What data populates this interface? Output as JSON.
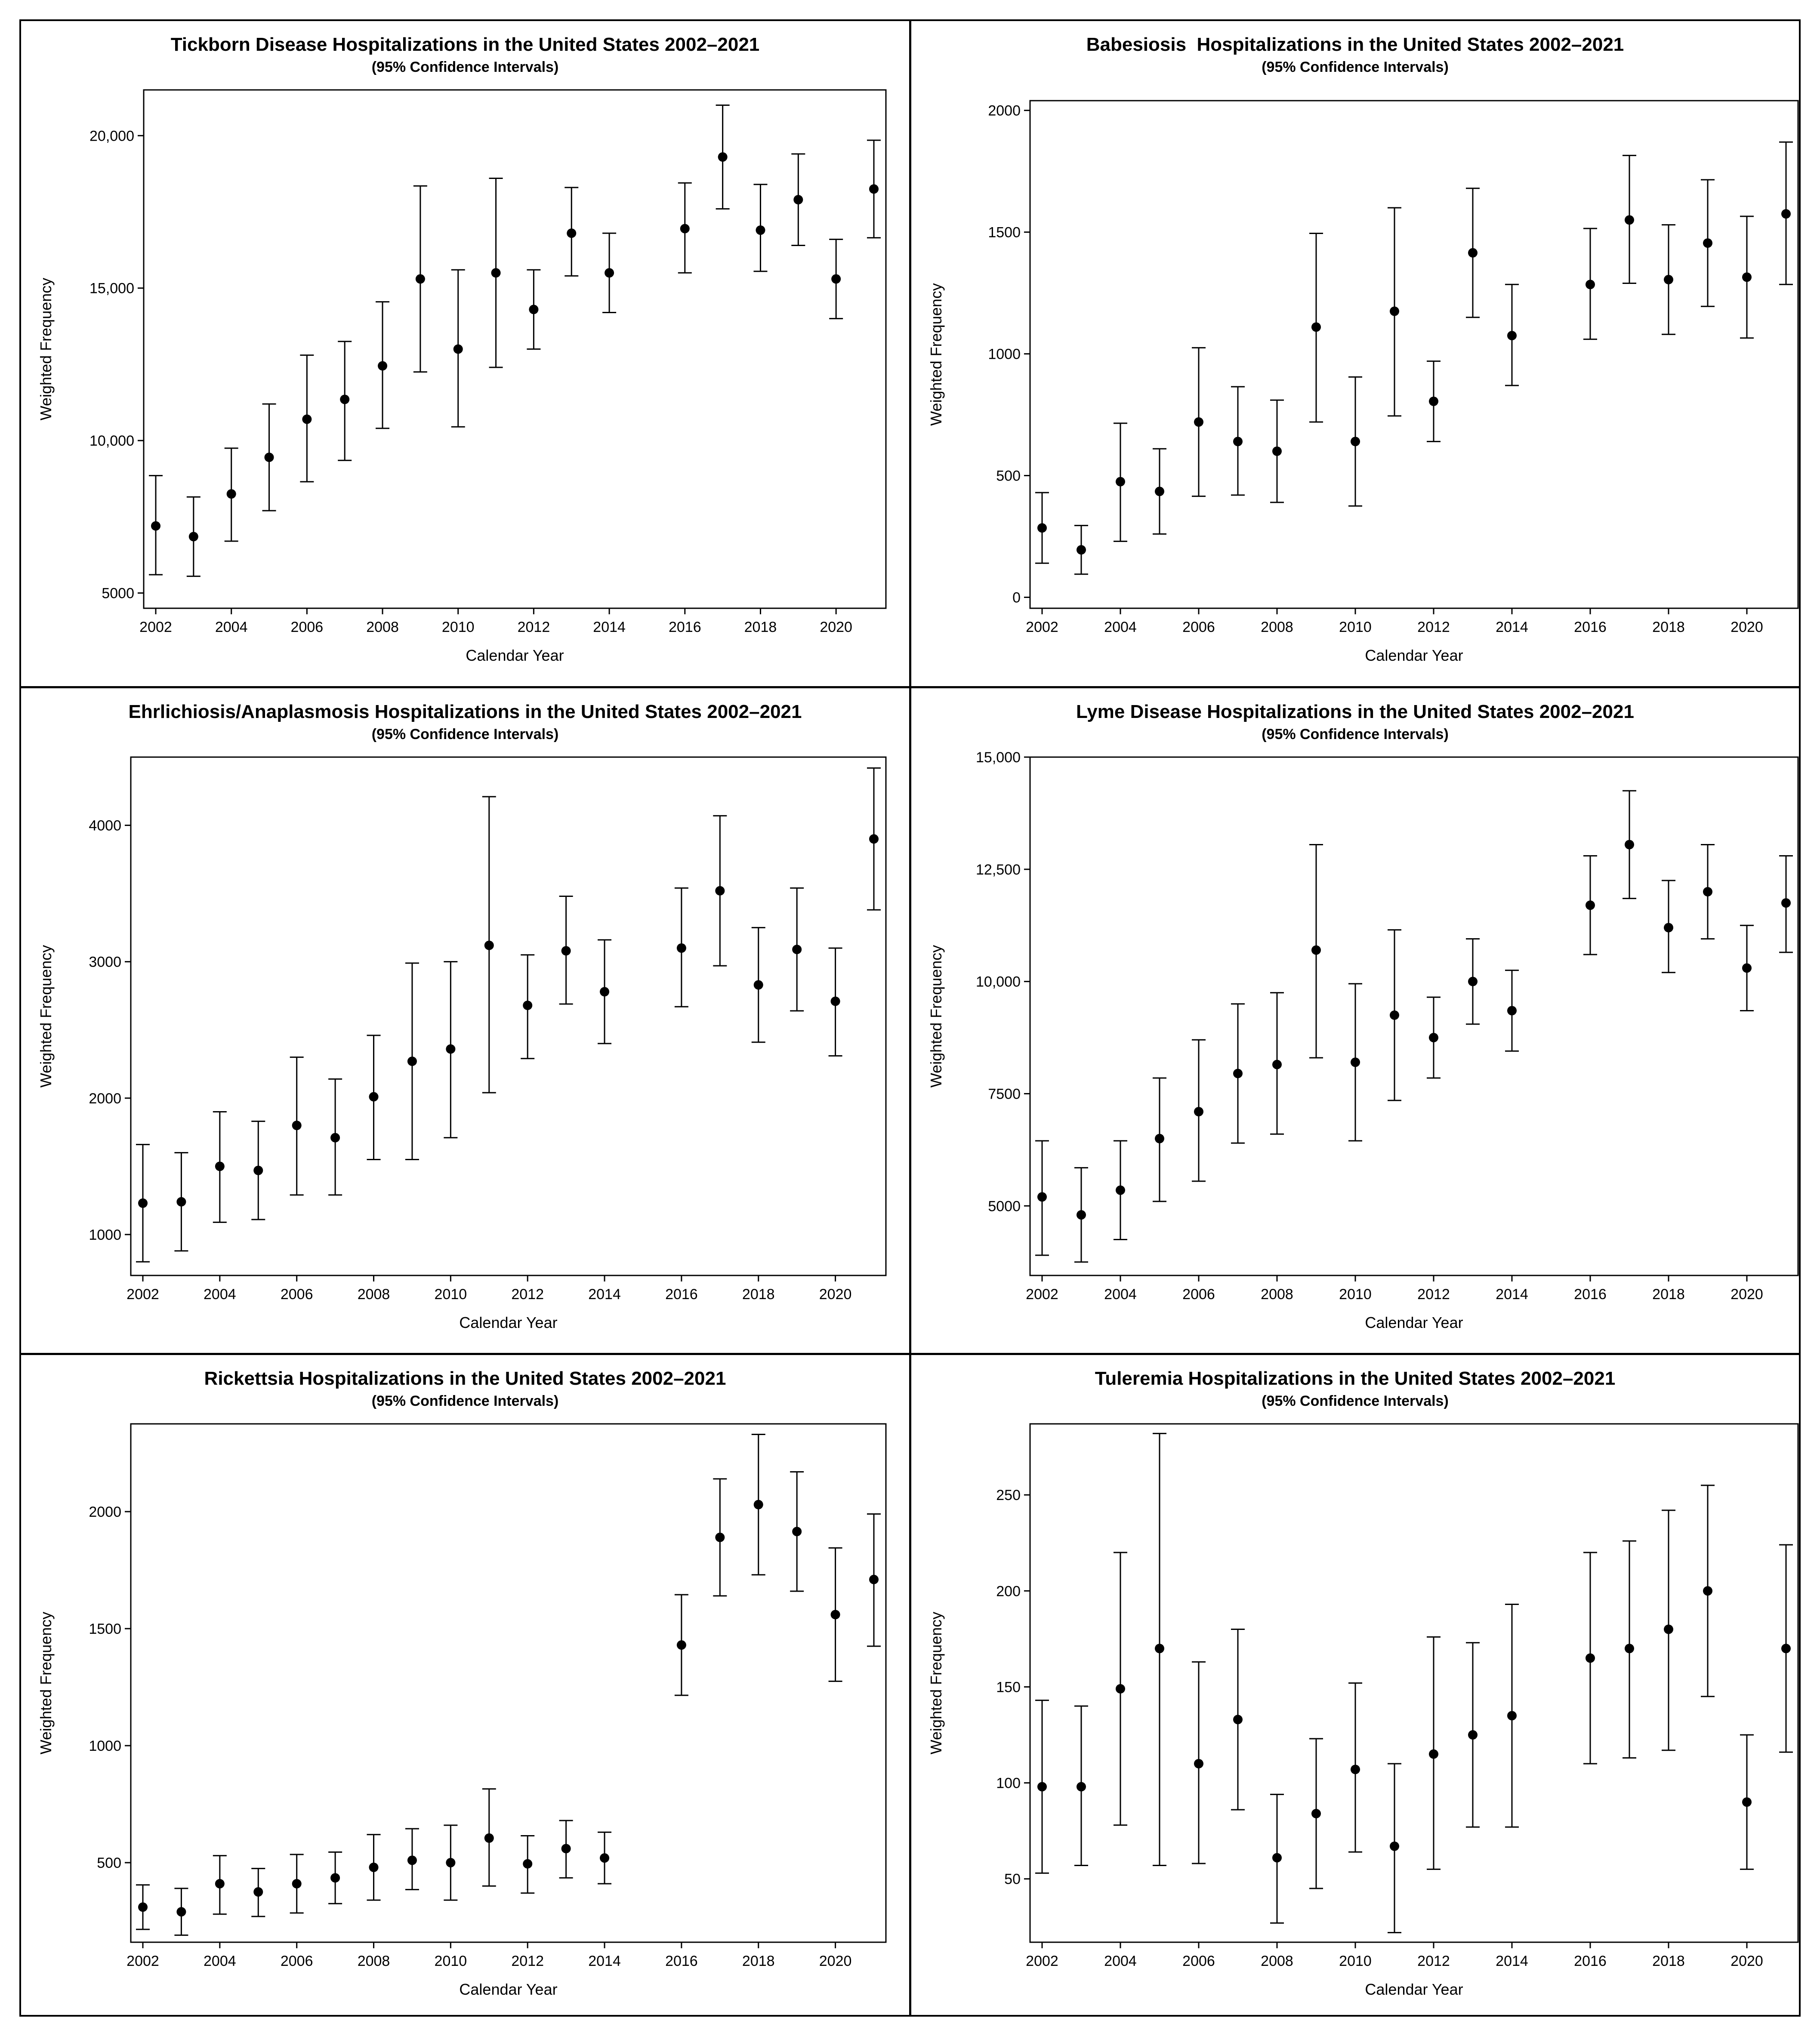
{
  "chart_data": [
    {
      "type": "scatter",
      "title": "Tickborn Disease Hospitalizations in the United States 2002–2021",
      "subtitle": "(95% Confidence Intervals)",
      "xlabel": "Calendar Year",
      "ylabel": "Weighted Frequency",
      "xlim": [
        2002,
        2021
      ],
      "xticks": [
        2002,
        2004,
        2006,
        2008,
        2010,
        2012,
        2014,
        2016,
        2018,
        2020
      ],
      "ylim": [
        4500,
        21500
      ],
      "yticks": [
        5000,
        10000,
        15000,
        20000
      ],
      "ytick_labels": [
        "5000",
        "10,000",
        "15,000",
        "20,000"
      ],
      "points": [
        {
          "x": 2002,
          "y": 7200,
          "lower": 5600,
          "upper": 8850
        },
        {
          "x": 2003,
          "y": 6850,
          "lower": 5550,
          "upper": 8150
        },
        {
          "x": 2004,
          "y": 8250,
          "lower": 6700,
          "upper": 9750
        },
        {
          "x": 2005,
          "y": 9450,
          "lower": 7700,
          "upper": 11200
        },
        {
          "x": 2006,
          "y": 10700,
          "lower": 8650,
          "upper": 12800
        },
        {
          "x": 2007,
          "y": 11350,
          "lower": 9350,
          "upper": 13250
        },
        {
          "x": 2008,
          "y": 12450,
          "lower": 10400,
          "upper": 14550
        },
        {
          "x": 2009,
          "y": 15300,
          "lower": 12250,
          "upper": 18350
        },
        {
          "x": 2010,
          "y": 13000,
          "lower": 10450,
          "upper": 15600
        },
        {
          "x": 2011,
          "y": 15500,
          "lower": 12400,
          "upper": 18600
        },
        {
          "x": 2012,
          "y": 14300,
          "lower": 13000,
          "upper": 15600
        },
        {
          "x": 2013,
          "y": 16800,
          "lower": 15400,
          "upper": 18300
        },
        {
          "x": 2014,
          "y": 15500,
          "lower": 14200,
          "upper": 16800
        },
        {
          "x": 2016,
          "y": 16950,
          "lower": 15500,
          "upper": 18450
        },
        {
          "x": 2017,
          "y": 19300,
          "lower": 17600,
          "upper": 21000
        },
        {
          "x": 2018,
          "y": 16900,
          "lower": 15550,
          "upper": 18400
        },
        {
          "x": 2019,
          "y": 17900,
          "lower": 16400,
          "upper": 19400
        },
        {
          "x": 2020,
          "y": 15300,
          "lower": 14000,
          "upper": 16600
        },
        {
          "x": 2021,
          "y": 18250,
          "lower": 16650,
          "upper": 19850
        }
      ]
    },
    {
      "type": "scatter",
      "title": "Babesiosis  Hospitalizations in the United States 2002–2021",
      "subtitle": "(95% Confidence Intervals)",
      "xlabel": "Calendar Year",
      "ylabel": "Weighted Frequency",
      "xlim": [
        2002,
        2021
      ],
      "xticks": [
        2002,
        2004,
        2006,
        2008,
        2010,
        2012,
        2014,
        2016,
        2018,
        2020
      ],
      "ylim": [
        -45,
        2040
      ],
      "yticks": [
        0,
        500,
        1000,
        1500,
        2000
      ],
      "ytick_labels": [
        "0",
        "500",
        "1000",
        "1500",
        "2000"
      ],
      "points": [
        {
          "x": 2002,
          "y": 285,
          "lower": 140,
          "upper": 430
        },
        {
          "x": 2003,
          "y": 195,
          "lower": 95,
          "upper": 295
        },
        {
          "x": 2004,
          "y": 475,
          "lower": 230,
          "upper": 715
        },
        {
          "x": 2005,
          "y": 435,
          "lower": 260,
          "upper": 610
        },
        {
          "x": 2006,
          "y": 720,
          "lower": 415,
          "upper": 1025
        },
        {
          "x": 2007,
          "y": 640,
          "lower": 420,
          "upper": 865
        },
        {
          "x": 2008,
          "y": 600,
          "lower": 390,
          "upper": 810
        },
        {
          "x": 2009,
          "y": 1110,
          "lower": 720,
          "upper": 1495
        },
        {
          "x": 2010,
          "y": 640,
          "lower": 375,
          "upper": 905
        },
        {
          "x": 2011,
          "y": 1175,
          "lower": 745,
          "upper": 1600
        },
        {
          "x": 2012,
          "y": 805,
          "lower": 640,
          "upper": 970
        },
        {
          "x": 2013,
          "y": 1415,
          "lower": 1150,
          "upper": 1680
        },
        {
          "x": 2014,
          "y": 1075,
          "lower": 870,
          "upper": 1285
        },
        {
          "x": 2016,
          "y": 1285,
          "lower": 1060,
          "upper": 1515
        },
        {
          "x": 2017,
          "y": 1550,
          "lower": 1290,
          "upper": 1815
        },
        {
          "x": 2018,
          "y": 1305,
          "lower": 1080,
          "upper": 1530
        },
        {
          "x": 2019,
          "y": 1455,
          "lower": 1195,
          "upper": 1715
        },
        {
          "x": 2020,
          "y": 1315,
          "lower": 1065,
          "upper": 1565
        },
        {
          "x": 2021,
          "y": 1575,
          "lower": 1285,
          "upper": 1870
        }
      ]
    },
    {
      "type": "scatter",
      "title": "Ehrlichiosis/Anaplasmosis Hospitalizations in the United States 2002–2021",
      "subtitle": "(95% Confidence Intervals)",
      "xlabel": "Calendar Year",
      "ylabel": "Weighted Frequency",
      "xlim": [
        2002,
        2021
      ],
      "xticks": [
        2002,
        2004,
        2006,
        2008,
        2010,
        2012,
        2014,
        2016,
        2018,
        2020
      ],
      "ylim": [
        700,
        4500
      ],
      "yticks": [
        1000,
        2000,
        3000,
        4000
      ],
      "ytick_labels": [
        "1000",
        "2000",
        "3000",
        "4000"
      ],
      "points": [
        {
          "x": 2002,
          "y": 1230,
          "lower": 800,
          "upper": 1660
        },
        {
          "x": 2003,
          "y": 1240,
          "lower": 880,
          "upper": 1600
        },
        {
          "x": 2004,
          "y": 1500,
          "lower": 1090,
          "upper": 1900
        },
        {
          "x": 2005,
          "y": 1470,
          "lower": 1110,
          "upper": 1830
        },
        {
          "x": 2006,
          "y": 1800,
          "lower": 1290,
          "upper": 2300
        },
        {
          "x": 2007,
          "y": 1710,
          "lower": 1290,
          "upper": 2140
        },
        {
          "x": 2008,
          "y": 2010,
          "lower": 1550,
          "upper": 2460
        },
        {
          "x": 2009,
          "y": 2270,
          "lower": 1550,
          "upper": 2990
        },
        {
          "x": 2010,
          "y": 2360,
          "lower": 1710,
          "upper": 3000
        },
        {
          "x": 2011,
          "y": 3120,
          "lower": 2040,
          "upper": 4210
        },
        {
          "x": 2012,
          "y": 2680,
          "lower": 2290,
          "upper": 3050
        },
        {
          "x": 2013,
          "y": 3080,
          "lower": 2690,
          "upper": 3480
        },
        {
          "x": 2014,
          "y": 2780,
          "lower": 2400,
          "upper": 3160
        },
        {
          "x": 2016,
          "y": 3100,
          "lower": 2670,
          "upper": 3540
        },
        {
          "x": 2017,
          "y": 3520,
          "lower": 2970,
          "upper": 4070
        },
        {
          "x": 2018,
          "y": 2830,
          "lower": 2410,
          "upper": 3250
        },
        {
          "x": 2019,
          "y": 3090,
          "lower": 2640,
          "upper": 3540
        },
        {
          "x": 2020,
          "y": 2710,
          "lower": 2310,
          "upper": 3100
        },
        {
          "x": 2021,
          "y": 3900,
          "lower": 3380,
          "upper": 4420
        }
      ]
    },
    {
      "type": "scatter",
      "title": "Lyme Disease Hospitalizations in the United States 2002–2021",
      "subtitle": "(95% Confidence Intervals)",
      "xlabel": "Calendar Year",
      "ylabel": "Weighted Frequency",
      "xlim": [
        2002,
        2021
      ],
      "xticks": [
        2002,
        2004,
        2006,
        2008,
        2010,
        2012,
        2014,
        2016,
        2018,
        2020
      ],
      "ylim": [
        3450,
        15000
      ],
      "yticks": [
        5000,
        7500,
        10000,
        12500,
        15000
      ],
      "ytick_labels": [
        "5000",
        "7500",
        "10,000",
        "12,500",
        "15,000"
      ],
      "points": [
        {
          "x": 2002,
          "y": 5200,
          "lower": 3900,
          "upper": 6450
        },
        {
          "x": 2003,
          "y": 4800,
          "lower": 3750,
          "upper": 5850
        },
        {
          "x": 2004,
          "y": 5350,
          "lower": 4250,
          "upper": 6450
        },
        {
          "x": 2005,
          "y": 6500,
          "lower": 5100,
          "upper": 7850
        },
        {
          "x": 2006,
          "y": 7100,
          "lower": 5550,
          "upper": 8700
        },
        {
          "x": 2007,
          "y": 7950,
          "lower": 6400,
          "upper": 9500
        },
        {
          "x": 2008,
          "y": 8150,
          "lower": 6600,
          "upper": 9750
        },
        {
          "x": 2009,
          "y": 10700,
          "lower": 8300,
          "upper": 13050
        },
        {
          "x": 2010,
          "y": 8200,
          "lower": 6450,
          "upper": 9950
        },
        {
          "x": 2011,
          "y": 9250,
          "lower": 7350,
          "upper": 11150
        },
        {
          "x": 2012,
          "y": 8750,
          "lower": 7850,
          "upper": 9650
        },
        {
          "x": 2013,
          "y": 10000,
          "lower": 9050,
          "upper": 10950
        },
        {
          "x": 2014,
          "y": 9350,
          "lower": 8450,
          "upper": 10250
        },
        {
          "x": 2016,
          "y": 11700,
          "lower": 10600,
          "upper": 12800
        },
        {
          "x": 2017,
          "y": 13050,
          "lower": 11850,
          "upper": 14250
        },
        {
          "x": 2018,
          "y": 11200,
          "lower": 10200,
          "upper": 12250
        },
        {
          "x": 2019,
          "y": 12000,
          "lower": 10950,
          "upper": 13050
        },
        {
          "x": 2020,
          "y": 10300,
          "lower": 9350,
          "upper": 11250
        },
        {
          "x": 2021,
          "y": 11750,
          "lower": 10650,
          "upper": 12800
        }
      ]
    },
    {
      "type": "scatter",
      "title": "Rickettsia Hospitalizations in the United States 2002–2021",
      "subtitle": "(95% Confidence Intervals)",
      "xlabel": "Calendar Year",
      "ylabel": "Weighted Frequency",
      "xlim": [
        2002,
        2021
      ],
      "xticks": [
        2002,
        2004,
        2006,
        2008,
        2010,
        2012,
        2014,
        2016,
        2018,
        2020
      ],
      "ylim": [
        160,
        2375
      ],
      "yticks": [
        500,
        1000,
        1500,
        2000
      ],
      "ytick_labels": [
        "500",
        "1000",
        "1500",
        "2000"
      ],
      "points": [
        {
          "x": 2002,
          "y": 310,
          "lower": 215,
          "upper": 405
        },
        {
          "x": 2003,
          "y": 290,
          "lower": 190,
          "upper": 390
        },
        {
          "x": 2004,
          "y": 410,
          "lower": 280,
          "upper": 530
        },
        {
          "x": 2005,
          "y": 375,
          "lower": 270,
          "upper": 475
        },
        {
          "x": 2006,
          "y": 410,
          "lower": 285,
          "upper": 535
        },
        {
          "x": 2007,
          "y": 435,
          "lower": 325,
          "upper": 545
        },
        {
          "x": 2008,
          "y": 480,
          "lower": 340,
          "upper": 620
        },
        {
          "x": 2009,
          "y": 510,
          "lower": 385,
          "upper": 645
        },
        {
          "x": 2010,
          "y": 500,
          "lower": 340,
          "upper": 660
        },
        {
          "x": 2011,
          "y": 605,
          "lower": 400,
          "upper": 815
        },
        {
          "x": 2012,
          "y": 495,
          "lower": 370,
          "upper": 615
        },
        {
          "x": 2013,
          "y": 560,
          "lower": 435,
          "upper": 680
        },
        {
          "x": 2014,
          "y": 520,
          "lower": 410,
          "upper": 630
        },
        {
          "x": 2016,
          "y": 1430,
          "lower": 1215,
          "upper": 1645
        },
        {
          "x": 2017,
          "y": 1890,
          "lower": 1640,
          "upper": 2140
        },
        {
          "x": 2018,
          "y": 2030,
          "lower": 1730,
          "upper": 2330
        },
        {
          "x": 2019,
          "y": 1915,
          "lower": 1660,
          "upper": 2170
        },
        {
          "x": 2020,
          "y": 1560,
          "lower": 1275,
          "upper": 1845
        },
        {
          "x": 2021,
          "y": 1710,
          "lower": 1425,
          "upper": 1990
        }
      ]
    },
    {
      "type": "scatter",
      "title": "Tuleremia Hospitalizations in the United States 2002–2021",
      "subtitle": "(95% Confidence Intervals)",
      "xlabel": "Calendar Year",
      "ylabel": "Weighted Frequency",
      "xlim": [
        2002,
        2021
      ],
      "xticks": [
        2002,
        2004,
        2006,
        2008,
        2010,
        2012,
        2014,
        2016,
        2018,
        2020
      ],
      "ylim": [
        17,
        287
      ],
      "yticks": [
        50,
        100,
        150,
        200,
        250
      ],
      "ytick_labels": [
        "50",
        "100",
        "150",
        "200",
        "250"
      ],
      "points": [
        {
          "x": 2002,
          "y": 98,
          "lower": 53,
          "upper": 143
        },
        {
          "x": 2003,
          "y": 98,
          "lower": 57,
          "upper": 140
        },
        {
          "x": 2004,
          "y": 149,
          "lower": 78,
          "upper": 220
        },
        {
          "x": 2005,
          "y": 170,
          "lower": 57,
          "upper": 282
        },
        {
          "x": 2006,
          "y": 110,
          "lower": 58,
          "upper": 163
        },
        {
          "x": 2007,
          "y": 133,
          "lower": 86,
          "upper": 180
        },
        {
          "x": 2008,
          "y": 61,
          "lower": 27,
          "upper": 94
        },
        {
          "x": 2009,
          "y": 84,
          "lower": 45,
          "upper": 123
        },
        {
          "x": 2010,
          "y": 107,
          "lower": 64,
          "upper": 152
        },
        {
          "x": 2011,
          "y": 67,
          "lower": 22,
          "upper": 110
        },
        {
          "x": 2012,
          "y": 115,
          "lower": 55,
          "upper": 176
        },
        {
          "x": 2013,
          "y": 125,
          "lower": 77,
          "upper": 173
        },
        {
          "x": 2014,
          "y": 135,
          "lower": 77,
          "upper": 193
        },
        {
          "x": 2016,
          "y": 165,
          "lower": 110,
          "upper": 220
        },
        {
          "x": 2017,
          "y": 170,
          "lower": 113,
          "upper": 226
        },
        {
          "x": 2018,
          "y": 180,
          "lower": 117,
          "upper": 242
        },
        {
          "x": 2019,
          "y": 200,
          "lower": 145,
          "upper": 255
        },
        {
          "x": 2020,
          "y": 90,
          "lower": 55,
          "upper": 125
        },
        {
          "x": 2021,
          "y": 170,
          "lower": 116,
          "upper": 224
        }
      ]
    }
  ]
}
